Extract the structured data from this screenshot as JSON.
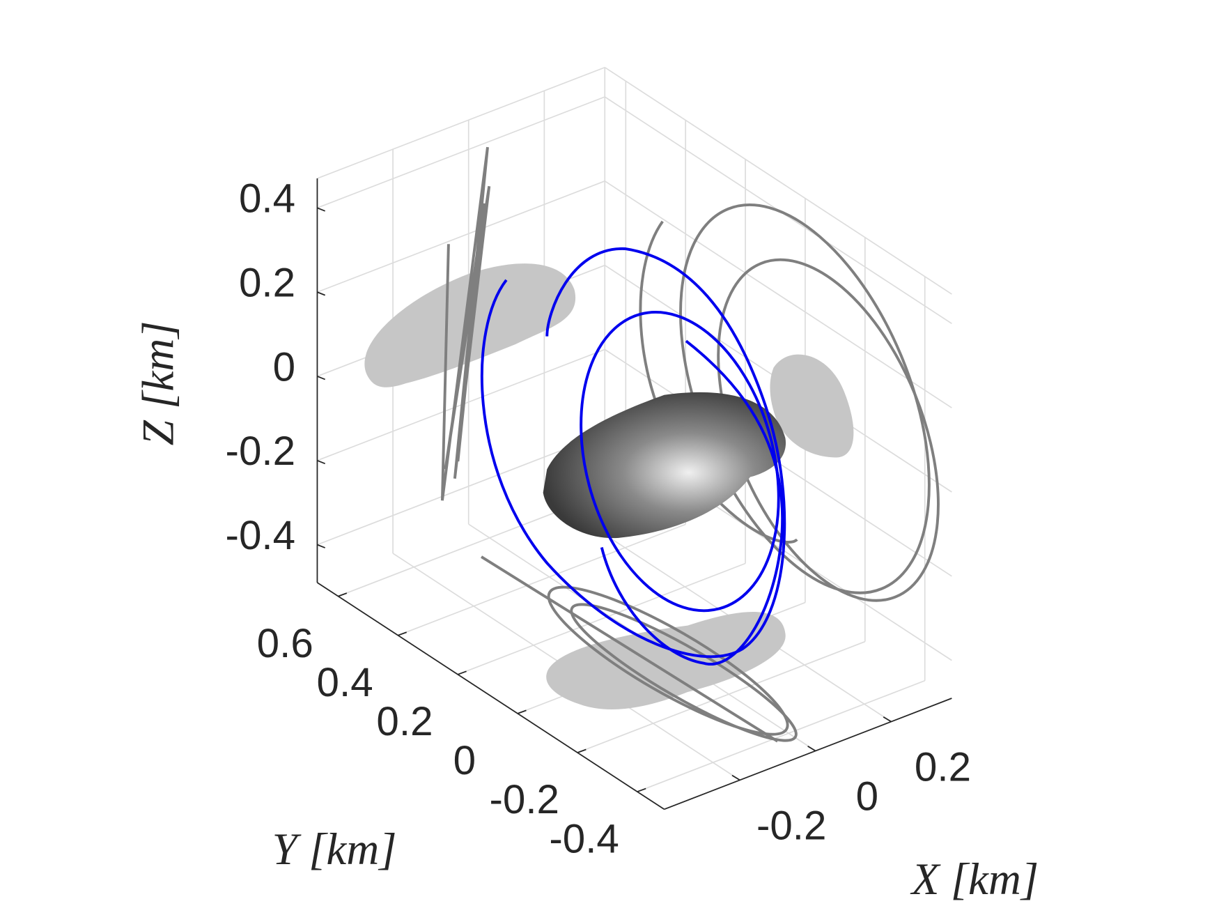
{
  "chart_data": {
    "type": "line3d",
    "xlabel": "X [km]",
    "ylabel": "Y [km]",
    "zlabel": "Z [km]",
    "xlim": [
      -0.4,
      0.36
    ],
    "ylim": [
      -0.49,
      0.67
    ],
    "zlim": [
      -0.49,
      0.47
    ],
    "xticks": [
      -0.2,
      0,
      0.2
    ],
    "yticks": [
      -0.4,
      -0.2,
      0,
      0.2,
      0.4,
      0.6
    ],
    "zticks": [
      -0.4,
      -0.2,
      0,
      0.2,
      0.4
    ],
    "grid": true
  }
}
